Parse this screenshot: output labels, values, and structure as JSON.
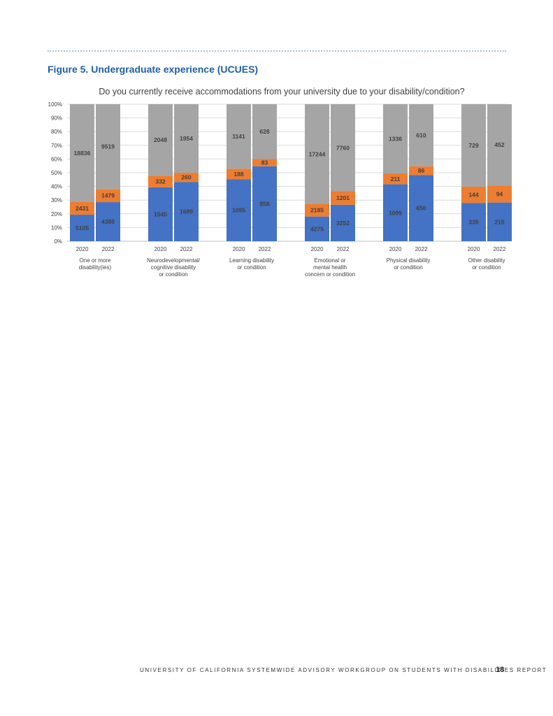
{
  "figure_title": "Figure 5. Undergraduate experience (UCUES)",
  "footer": "UNIVERSITY OF CALIFORNIA SYSTEMWIDE ADVISORY WORKGROUP ON STUDENTS WITH DISABILITIES REPORT",
  "page_number": "18",
  "colors": {
    "blue": "#4472c4",
    "orange": "#ed7d31",
    "gray": "#a5a5a5",
    "title_blue": "#1f5fa8"
  },
  "chart_data": {
    "type": "bar",
    "stacked": "percent",
    "title": "Do you currently receive accommodations from your university due to your disability/condition?",
    "ylim": [
      0,
      100
    ],
    "y_ticks": [
      "0%",
      "10%",
      "20%",
      "30%",
      "40%",
      "50%",
      "60%",
      "70%",
      "80%",
      "90%",
      "100%"
    ],
    "grid": true,
    "legend": "none",
    "groups": [
      {
        "label": [
          "One or more",
          "disability(ies)"
        ],
        "bars": [
          {
            "year": "2020",
            "values": [
              5105,
              2431,
              18836
            ]
          },
          {
            "year": "2022",
            "values": [
              4389,
              1479,
              9519
            ]
          }
        ]
      },
      {
        "label": [
          "Neurodevelopmental/",
          "cognitive disability",
          "or condition"
        ],
        "bars": [
          {
            "year": "2020",
            "values": [
              1545,
              332,
              2048
            ]
          },
          {
            "year": "2022",
            "values": [
              1689,
              260,
              1954
            ]
          }
        ]
      },
      {
        "label": [
          "Learning disability",
          "or condition"
        ],
        "bars": [
          {
            "year": "2020",
            "values": [
              1095,
              188,
              1141
            ]
          },
          {
            "year": "2022",
            "values": [
              858,
              83,
              628
            ]
          }
        ]
      },
      {
        "label": [
          "Emotional or",
          "mental health",
          "concern or condition"
        ],
        "bars": [
          {
            "year": "2020",
            "values": [
              4275,
              2185,
              17244
            ]
          },
          {
            "year": "2022",
            "values": [
              3252,
              1201,
              7760
            ]
          }
        ]
      },
      {
        "label": [
          "Physical disability",
          "or condition"
        ],
        "bars": [
          {
            "year": "2020",
            "values": [
              1099,
              211,
              1336
            ]
          },
          {
            "year": "2022",
            "values": [
              650,
              86,
              610
            ]
          }
        ]
      },
      {
        "label": [
          "Other disability",
          "or condition"
        ],
        "bars": [
          {
            "year": "2020",
            "values": [
              339,
              144,
              729
            ]
          },
          {
            "year": "2022",
            "values": [
              215,
              94,
              452
            ]
          }
        ]
      }
    ]
  }
}
